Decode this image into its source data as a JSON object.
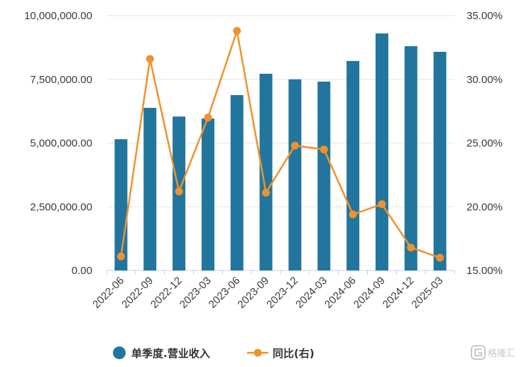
{
  "chart_data": {
    "type": "bar",
    "categories": [
      "2022-06",
      "2022-09",
      "2022-12",
      "2023-03",
      "2023-06",
      "2023-09",
      "2023-12",
      "2024-03",
      "2024-06",
      "2024-09",
      "2024-12",
      "2025-03"
    ],
    "series": [
      {
        "name": "单季度.营业收入",
        "type": "bar",
        "axis": "left",
        "color": "#22759d",
        "values": [
          5150000,
          6380000,
          6040000,
          5960000,
          6880000,
          7720000,
          7500000,
          7410000,
          8220000,
          9300000,
          8800000,
          8580000
        ]
      },
      {
        "name": "同比(右)",
        "type": "line",
        "axis": "right",
        "color": "#f0922b",
        "values": [
          16.1,
          31.6,
          21.2,
          27.0,
          33.8,
          21.1,
          24.8,
          24.5,
          19.4,
          20.2,
          16.8,
          16.0
        ]
      }
    ],
    "y_left": {
      "range": [
        0,
        10000000
      ],
      "ticks": [
        0,
        2500000,
        5000000,
        7500000,
        10000000
      ],
      "tick_labels": [
        "0.00",
        "2,500,000.00",
        "5,000,000.00",
        "7,500,000.00",
        "10,000,000.00"
      ]
    },
    "y_right": {
      "range": [
        15,
        35
      ],
      "ticks": [
        15,
        20,
        25,
        30,
        35
      ],
      "tick_labels": [
        "15.00%",
        "20.00%",
        "25.00%",
        "30.00%",
        "35.00%"
      ]
    },
    "title": "",
    "xlabel": "",
    "ylabel": "",
    "grid": true,
    "legend_position": "bottom"
  },
  "legend": {
    "bar_label": "单季度.营业收入",
    "line_label": "同比(右)"
  },
  "watermark": "格隆汇"
}
